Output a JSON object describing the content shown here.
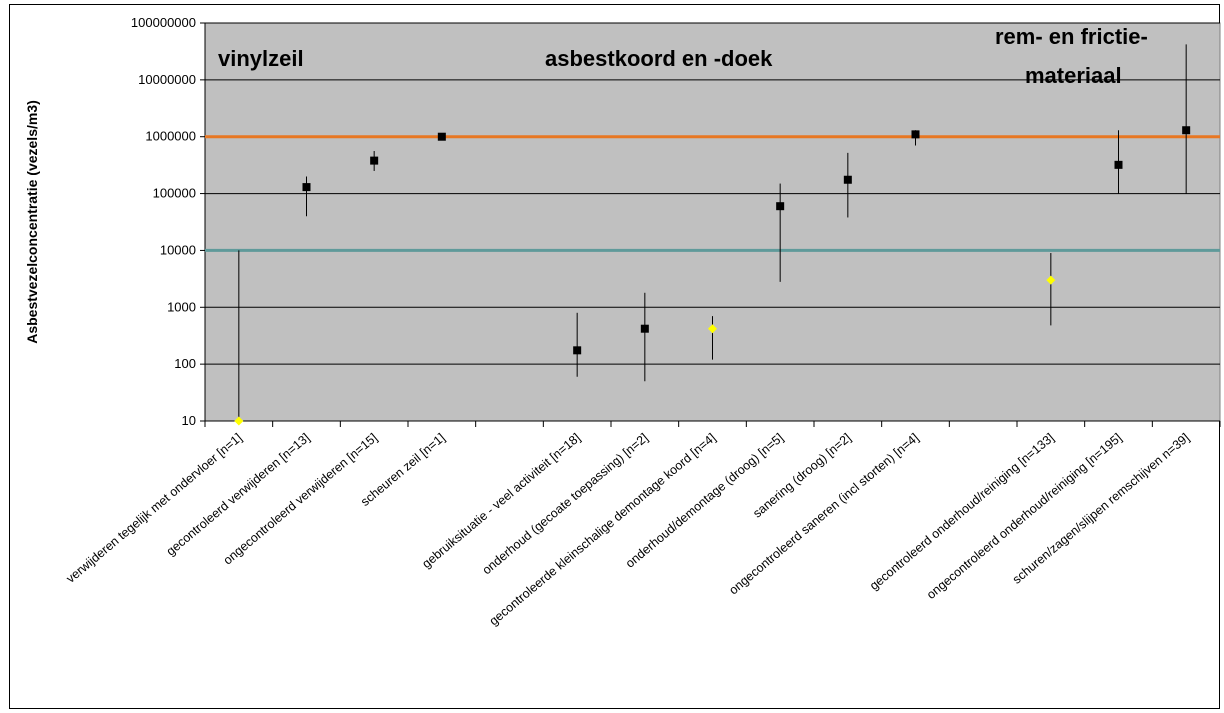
{
  "chart_data": {
    "type": "scatter",
    "title": "",
    "xlabel": "",
    "ylabel": "Asbestvezelconcentratie (vezels/m3)",
    "yscale": "log",
    "ylim": [
      10,
      100000000
    ],
    "yticks": [
      "10",
      "100",
      "1000",
      "10000",
      "100000",
      "1000000",
      "10000000",
      "100000000"
    ],
    "grid": true,
    "plot_background": "#C0C0C0",
    "group_labels": [
      {
        "text": "vinylzeil"
      },
      {
        "text": "asbestkoord en -doek"
      },
      {
        "text": "rem- en frictie-"
      },
      {
        "text": "materiaal"
      }
    ],
    "reference_lines": [
      {
        "value": 1000000,
        "color": "#E87722"
      },
      {
        "value": 10000,
        "color": "#5F9A9A"
      }
    ],
    "categories": [
      "verwijderen tegelijk met ondervloer [n=1]",
      "gecontroleerd verwijderen [n=13]",
      "ongecontroleerd verwijderen [n=15]",
      "scheuren zeil  [n=1]",
      "",
      "gebruiksituatie - veel activiteit [n=18]",
      "onderhoud  (gecoate toepassing) [n=2]",
      "gecontroleerde kleinschalige demontage koord [n=4]",
      "onderhoud/demontage (droog) [n=5]",
      "sanering (droog) [n=2]",
      "ongecontroleerd saneren (incl storten) [n=4]",
      "",
      "gecontroleerd onderhoud/reiniging [n=133]",
      "ongecontroleerd onderhoud/reiniging [n=195]",
      "schuren/zagen/slijpen remschijven n=39]"
    ],
    "points": [
      {
        "cat": 0,
        "y": 10,
        "low": 10,
        "high": 10000,
        "marker": "diamond",
        "color": "#FFFF00"
      },
      {
        "cat": 1,
        "y": 130000,
        "low": 40000,
        "high": 200000,
        "marker": "square",
        "color": "#000000"
      },
      {
        "cat": 2,
        "y": 380000,
        "low": 250000,
        "high": 560000,
        "marker": "square",
        "color": "#000000"
      },
      {
        "cat": 3,
        "y": 1000000,
        "low": 950000,
        "high": 1050000,
        "marker": "square",
        "color": "#000000"
      },
      {
        "cat": 5,
        "y": 175,
        "low": 60,
        "high": 800,
        "marker": "square",
        "color": "#000000"
      },
      {
        "cat": 6,
        "y": 420,
        "low": 50,
        "high": 1800,
        "marker": "square",
        "color": "#000000"
      },
      {
        "cat": 7,
        "y": 420,
        "low": 120,
        "high": 700,
        "marker": "diamond",
        "color": "#FFFF00"
      },
      {
        "cat": 8,
        "y": 60000,
        "low": 2800,
        "high": 150000,
        "marker": "square",
        "color": "#000000"
      },
      {
        "cat": 9,
        "y": 175000,
        "low": 38000,
        "high": 520000,
        "marker": "square",
        "color": "#000000"
      },
      {
        "cat": 10,
        "y": 1100000,
        "low": 700000,
        "high": 1300000,
        "marker": "square",
        "color": "#000000"
      },
      {
        "cat": 12,
        "y": 3000,
        "low": 480,
        "high": 9000,
        "marker": "diamond",
        "color": "#FFFF00"
      },
      {
        "cat": 13,
        "y": 320000,
        "low": 100000,
        "high": 1300000,
        "marker": "square",
        "color": "#000000"
      },
      {
        "cat": 14,
        "y": 1300000,
        "low": 100000,
        "high": 42000000,
        "marker": "square",
        "color": "#000000"
      }
    ]
  }
}
